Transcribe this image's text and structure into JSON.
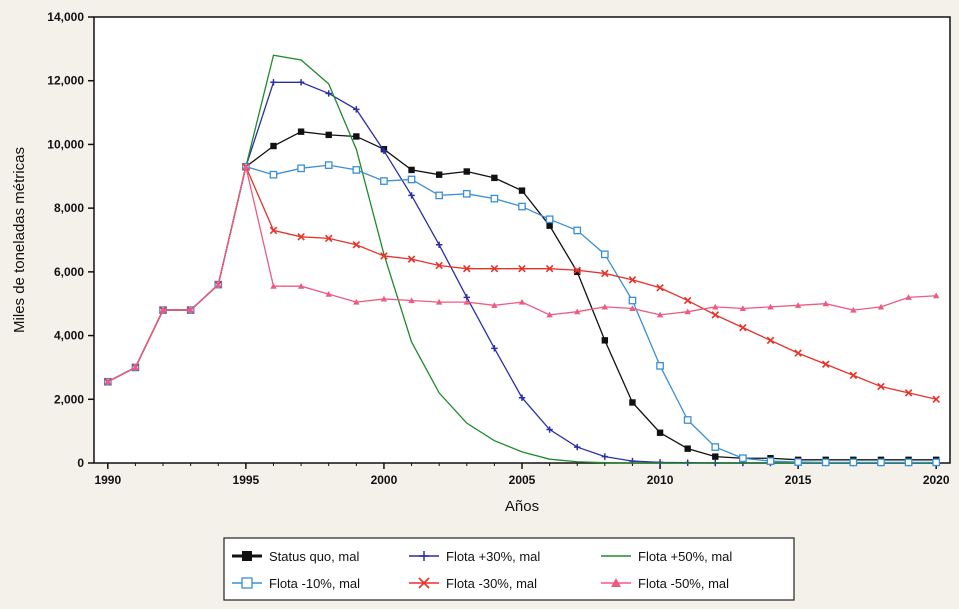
{
  "chart_data": {
    "type": "line",
    "title": "",
    "xlabel": "Años",
    "ylabel": "Miles de toneladas métricas",
    "xlim": [
      1989.5,
      2020.5
    ],
    "ylim": [
      0,
      14000
    ],
    "x_ticks": [
      1990,
      1995,
      2000,
      2005,
      2010,
      2015,
      2020
    ],
    "y_ticks": [
      0,
      2000,
      4000,
      6000,
      8000,
      10000,
      12000,
      14000
    ],
    "x_tick_labels": [
      "1990",
      "1995",
      "2000",
      "2005",
      "2010",
      "2015",
      "2020"
    ],
    "y_tick_labels": [
      "0",
      "2,000",
      "4,000",
      "6,000",
      "8,000",
      "10,000",
      "12,000",
      "14,000"
    ],
    "grid": false,
    "legend_position": "bottom-center",
    "x": [
      1990,
      1991,
      1992,
      1993,
      1994,
      1995,
      1996,
      1997,
      1998,
      1999,
      2000,
      2001,
      2002,
      2003,
      2004,
      2005,
      2006,
      2007,
      2008,
      2009,
      2010,
      2011,
      2012,
      2013,
      2014,
      2015,
      2016,
      2017,
      2018,
      2019,
      2020
    ],
    "series": [
      {
        "name": "Status quo, mal",
        "color": "#111111",
        "marker": "filled-square",
        "values": [
          2550,
          3000,
          4800,
          4800,
          5600,
          9300,
          9950,
          10400,
          10300,
          10250,
          9850,
          9200,
          9050,
          9150,
          8950,
          8550,
          7450,
          6000,
          3850,
          1900,
          950,
          450,
          200,
          150,
          150,
          100,
          100,
          100,
          100,
          100,
          100
        ]
      },
      {
        "name": "Flota +30%, mal",
        "color": "#2b2fa8",
        "marker": "plus",
        "values": [
          2550,
          3000,
          4800,
          4800,
          5600,
          9300,
          11950,
          11950,
          11600,
          11100,
          9800,
          8400,
          6850,
          5200,
          3600,
          2050,
          1050,
          500,
          200,
          60,
          20,
          10,
          0,
          0,
          0,
          0,
          0,
          0,
          0,
          0,
          0
        ]
      },
      {
        "name": "Flota +50%, mal",
        "color": "#1f8a2a",
        "marker": "none",
        "values": [
          2550,
          3000,
          4800,
          4800,
          5600,
          9300,
          12800,
          12650,
          11900,
          9850,
          6550,
          3800,
          2200,
          1250,
          700,
          350,
          120,
          40,
          10,
          0,
          0,
          0,
          0,
          0,
          0,
          0,
          0,
          0,
          0,
          0,
          0
        ]
      },
      {
        "name": "Flota -10%, mal",
        "color": "#3a8fd6",
        "marker": "open-square",
        "values": [
          2550,
          3000,
          4800,
          4800,
          5600,
          9300,
          9050,
          9250,
          9350,
          9200,
          8850,
          8900,
          8400,
          8450,
          8300,
          8050,
          7650,
          7300,
          6550,
          5100,
          3050,
          1350,
          500,
          150,
          60,
          30,
          20,
          20,
          20,
          20,
          20
        ]
      },
      {
        "name": "Flota -30%, mal",
        "color": "#e8322a",
        "marker": "x",
        "values": [
          2550,
          3000,
          4800,
          4800,
          5600,
          9300,
          7300,
          7100,
          7050,
          6850,
          6500,
          6400,
          6200,
          6100,
          6100,
          6100,
          6100,
          6050,
          5950,
          5750,
          5500,
          5100,
          4650,
          4250,
          3850,
          3450,
          3100,
          2750,
          2400,
          2200,
          2000
        ]
      },
      {
        "name": "Flota -50%, mal",
        "color": "#ef5a82",
        "marker": "triangle",
        "values": [
          2550,
          3000,
          4800,
          4800,
          5600,
          9300,
          5550,
          5550,
          5300,
          5050,
          5150,
          5100,
          5050,
          5050,
          4950,
          5050,
          4650,
          4750,
          4900,
          4850,
          4650,
          4750,
          4900,
          4850,
          4900,
          4950,
          5000,
          4800,
          4900,
          5200,
          5250
        ]
      }
    ]
  }
}
